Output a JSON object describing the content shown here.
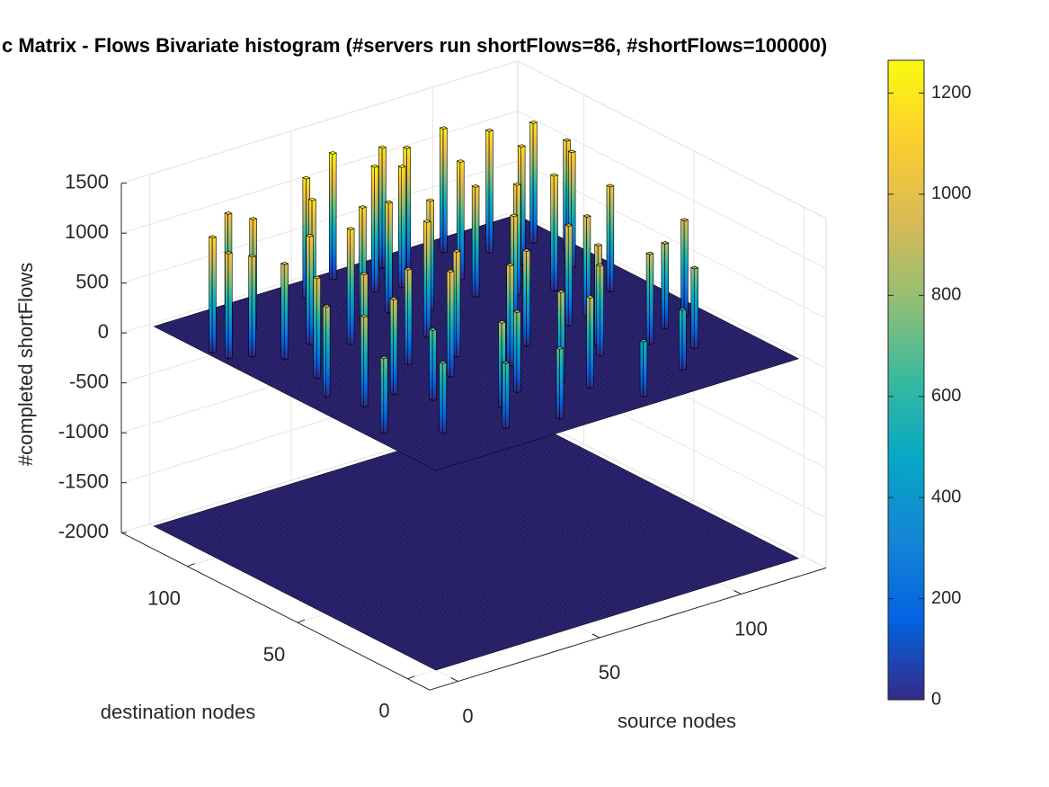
{
  "chart_data": {
    "type": "bar3",
    "title": "c Matrix - Flows Bivariate histogram (#servers run shortFlows=86, #shortFlows=100000)",
    "xlabel": "source nodes",
    "ylabel": "destination nodes",
    "zlabel": "#completed shortFlows",
    "xlim": [
      -10,
      130
    ],
    "xticks": [
      0,
      50,
      100
    ],
    "ylim": [
      -10,
      130
    ],
    "yticks": [
      0,
      50,
      100
    ],
    "zlim": [
      -2000,
      1500
    ],
    "zticks": [
      -2000,
      -1500,
      -1000,
      -500,
      0,
      500,
      1000,
      1500
    ],
    "bins": 128,
    "plane_levels": [
      -2000,
      0
    ],
    "grid": true,
    "colormap": [
      "#352a87",
      "#0363e1",
      "#1485d4",
      "#06a7c6",
      "#38b99e",
      "#92bf73",
      "#d9ba56",
      "#fcce2e",
      "#f9fb0e"
    ],
    "clim": [
      0,
      1265
    ],
    "cticks": [
      0,
      200,
      400,
      600,
      800,
      1000,
      1200
    ],
    "bars": {
      "x": [
        2,
        3,
        9,
        15,
        21,
        27,
        8,
        14,
        20,
        30,
        36,
        40,
        46,
        52,
        58,
        64,
        70,
        76,
        82,
        88,
        94,
        100,
        106,
        112,
        118,
        124,
        5,
        12,
        26,
        34,
        44,
        50,
        56,
        62,
        68,
        74,
        80,
        86,
        92,
        98,
        104,
        110,
        116,
        122,
        18,
        38,
        48,
        60,
        72,
        84,
        96,
        108,
        120,
        24,
        42,
        54,
        66,
        78,
        90,
        102
      ],
      "y": [
        104,
        98,
        95,
        88,
        110,
        92,
        60,
        72,
        120,
        40,
        85,
        64,
        118,
        30,
        96,
        110,
        20,
        122,
        70,
        102,
        84,
        60,
        112,
        40,
        90,
        100,
        30,
        48,
        66,
        12,
        50,
        8,
        76,
        46,
        90,
        54,
        116,
        36,
        58,
        14,
        80,
        24,
        70,
        44,
        20,
        105,
        95,
        124,
        108,
        90,
        120,
        100,
        110,
        50,
        24,
        60,
        28,
        6,
        42,
        34
      ],
      "values": [
        1150,
        1050,
        1000,
        950,
        1100,
        1080,
        900,
        1000,
        1050,
        700,
        1150,
        950,
        1200,
        800,
        1100,
        1250,
        900,
        1200,
        1050,
        1180,
        1100,
        1000,
        1220,
        850,
        1150,
        1100,
        750,
        900,
        1000,
        650,
        1050,
        700,
        1150,
        1000,
        1100,
        950,
        1230,
        900,
        1000,
        600,
        1150,
        800,
        1050,
        950,
        700,
        1200,
        1150,
        1260,
        1200,
        1100,
        1240,
        1180,
        1200,
        950,
        850,
        1050,
        900,
        550,
        1000,
        900
      ]
    }
  }
}
